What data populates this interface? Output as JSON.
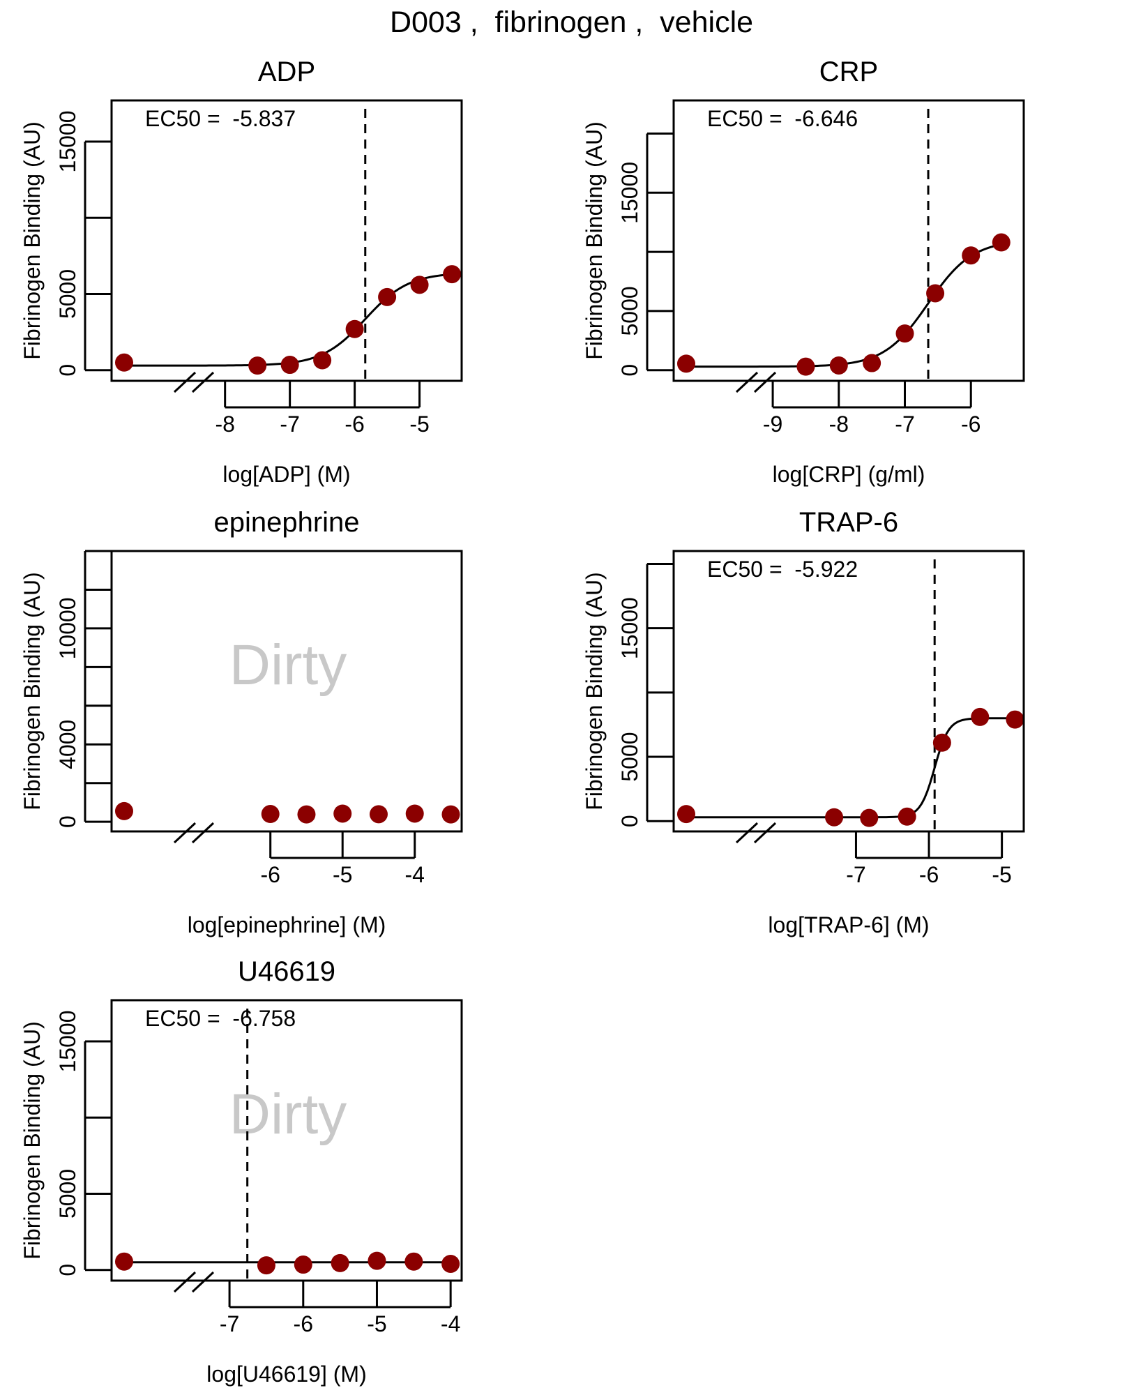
{
  "page": {
    "title": "D003 ,  fibrinogen ,  vehicle"
  },
  "style": {
    "point_color": "#8b0000",
    "curve_color": "#000000",
    "watermark_color": "#c8c8c8"
  },
  "chart_data": [
    {
      "type": "scatter",
      "title": "ADP",
      "xlabel": "log[ADP] (M)",
      "ylabel": "Fibrinogen Binding (AU)",
      "xlim": [
        -9.75,
        -4.35
      ],
      "ylim": [
        -700,
        17700
      ],
      "yticks": [
        0,
        5000,
        10000,
        15000
      ],
      "ylabeled": [
        0,
        5000,
        15000
      ],
      "xticks": [
        -8,
        -7,
        -6,
        -5
      ],
      "has_axis_break": true,
      "vehicle_point": 500,
      "points": [
        [
          -7.5,
          300
        ],
        [
          -7.0,
          350
        ],
        [
          -6.5,
          650
        ],
        [
          -6.0,
          2700
        ],
        [
          -5.5,
          4800
        ],
        [
          -5.0,
          5600
        ],
        [
          -4.5,
          6300
        ]
      ],
      "curve": {
        "bottom": 300,
        "top": 6400,
        "ec50": -5.837,
        "hill": 1.3
      },
      "ec50_label": "EC50 =  -5.837",
      "ec50": -5.837,
      "watermark": ""
    },
    {
      "type": "scatter",
      "title": "CRP",
      "xlabel": "log[CRP] (g/ml)",
      "ylabel": "Fibrinogen Binding (AU)",
      "xlim": [
        -10.5,
        -5.2
      ],
      "ylim": [
        -900,
        22800
      ],
      "yticks": [
        0,
        5000,
        10000,
        15000,
        20000
      ],
      "ylabeled": [
        0,
        5000,
        15000
      ],
      "xticks": [
        -9,
        -8,
        -7,
        -6
      ],
      "has_axis_break": true,
      "vehicle_point": 550,
      "points": [
        [
          -8.5,
          300
        ],
        [
          -8.0,
          400
        ],
        [
          -7.5,
          600
        ],
        [
          -7.0,
          3100
        ],
        [
          -6.54,
          6500
        ],
        [
          -6.0,
          9700
        ],
        [
          -5.54,
          10800
        ]
      ],
      "curve": {
        "bottom": 300,
        "top": 11000,
        "ec50": -6.646,
        "hill": 1.3
      },
      "ec50_label": "EC50 =  -6.646",
      "ec50": -6.646,
      "watermark": ""
    },
    {
      "type": "scatter",
      "title": "epinephrine",
      "xlabel": "log[epinephrine] (M)",
      "ylabel": "Fibrinogen Binding (AU)",
      "xlim": [
        -8.2,
        -3.35
      ],
      "ylim": [
        -500,
        14000
      ],
      "yticks": [
        0,
        2000,
        4000,
        6000,
        8000,
        10000,
        12000,
        14000
      ],
      "ylabeled": [
        0,
        4000,
        10000
      ],
      "xticks": [
        -6,
        -5,
        -4
      ],
      "has_axis_break": true,
      "vehicle_point": 550,
      "points": [
        [
          -6.0,
          400
        ],
        [
          -5.5,
          380
        ],
        [
          -5.0,
          420
        ],
        [
          -4.5,
          390
        ],
        [
          -4.0,
          420
        ],
        [
          -3.5,
          380
        ]
      ],
      "curve": null,
      "ec50_label": "",
      "ec50": null,
      "watermark": "Dirty"
    },
    {
      "type": "scatter",
      "title": "TRAP-6",
      "xlabel": "log[TRAP-6] (M)",
      "ylabel": "Fibrinogen Binding (AU)",
      "xlim": [
        -9.5,
        -4.7
      ],
      "ylim": [
        -800,
        21000
      ],
      "yticks": [
        0,
        5000,
        10000,
        15000,
        20000
      ],
      "ylabeled": [
        0,
        5000,
        15000
      ],
      "xticks": [
        -7,
        -6,
        -5
      ],
      "has_axis_break": true,
      "vehicle_point": 550,
      "points": [
        [
          -7.3,
          300
        ],
        [
          -6.82,
          250
        ],
        [
          -6.3,
          350
        ],
        [
          -5.82,
          6100
        ],
        [
          -5.3,
          8100
        ],
        [
          -4.82,
          7900
        ]
      ],
      "curve": {
        "bottom": 300,
        "top": 8000,
        "ec50": -5.922,
        "hill": 4.5
      },
      "ec50_label": "EC50 =  -5.922",
      "ec50": -5.922,
      "watermark": ""
    },
    {
      "type": "scatter",
      "title": "U46619",
      "xlabel": "log[U46619] (M)",
      "ylabel": "Fibrinogen Binding (AU)",
      "xlim": [
        -8.6,
        -3.85
      ],
      "ylim": [
        -700,
        17700
      ],
      "yticks": [
        0,
        5000,
        10000,
        15000
      ],
      "ylabeled": [
        0,
        5000,
        15000
      ],
      "xticks": [
        -7,
        -6,
        -5,
        -4
      ],
      "has_axis_break": true,
      "vehicle_point": 550,
      "points": [
        [
          -6.5,
          300
        ],
        [
          -6.0,
          350
        ],
        [
          -5.5,
          450
        ],
        [
          -5.0,
          600
        ],
        [
          -4.5,
          550
        ],
        [
          -4.0,
          400
        ]
      ],
      "curve": {
        "flat": 500
      },
      "ec50_label": "EC50 =  -6.758",
      "ec50": -6.758,
      "watermark": "Dirty"
    }
  ]
}
